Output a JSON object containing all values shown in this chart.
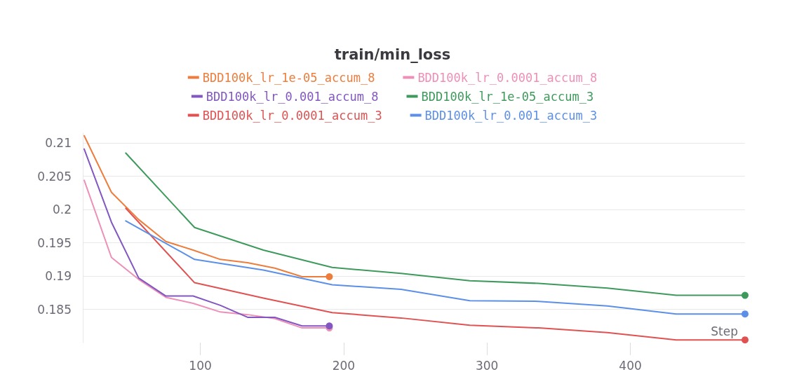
{
  "chart_data": {
    "type": "line",
    "title": "train/min_loss",
    "xlabel": "Step",
    "xlim": [
      18,
      480
    ],
    "xticks": [
      100,
      200,
      300,
      400
    ],
    "ylim": [
      0.18,
      0.2115
    ],
    "yticks": [
      0.185,
      0.19,
      0.195,
      0.2,
      0.205,
      0.21
    ],
    "grid": "y",
    "legend": "top",
    "line_style": "solid",
    "series": [
      {
        "name": "BDD100k_lr_1e-05_accum_8",
        "color": "#ec7d3c",
        "x": [
          19,
          38,
          57,
          76,
          95,
          114,
          133,
          152,
          171,
          190
        ],
        "values": [
          0.2111,
          0.2026,
          0.1985,
          0.1952,
          0.1939,
          0.1925,
          0.192,
          0.1912,
          0.1899,
          0.1899
        ]
      },
      {
        "name": "BDD100k_lr_0.0001_accum_8",
        "color": "#ee8fb8",
        "x": [
          19,
          38,
          57,
          76,
          95,
          114,
          133,
          152,
          171,
          190
        ],
        "values": [
          0.2044,
          0.1928,
          0.1895,
          0.1868,
          0.1859,
          0.1846,
          0.1842,
          0.1836,
          0.1822,
          0.1822
        ]
      },
      {
        "name": "BDD100k_lr_0.001_accum_8",
        "color": "#8257c2",
        "x": [
          19,
          38,
          57,
          76,
          95,
          114,
          133,
          152,
          171,
          190
        ],
        "values": [
          0.2091,
          0.1981,
          0.1897,
          0.187,
          0.187,
          0.1856,
          0.1838,
          0.1838,
          0.1825,
          0.1825
        ]
      },
      {
        "name": "BDD100k_lr_1e-05_accum_3",
        "color": "#3e9a5c",
        "x": [
          48,
          96,
          144,
          192,
          240,
          288,
          336,
          384,
          432,
          480
        ],
        "values": [
          0.2085,
          0.1973,
          0.1939,
          0.1913,
          0.1904,
          0.1893,
          0.1889,
          0.1882,
          0.1871,
          0.1871
        ]
      },
      {
        "name": "BDD100k_lr_0.0001_accum_3",
        "color": "#e05252",
        "x": [
          48,
          96,
          144,
          192,
          240,
          288,
          336,
          384,
          432,
          480
        ],
        "values": [
          0.2002,
          0.189,
          0.1867,
          0.1845,
          0.1837,
          0.1826,
          0.1822,
          0.1815,
          0.1804,
          0.1804
        ]
      },
      {
        "name": "BDD100k_lr_0.001_accum_3",
        "color": "#5b8fe8",
        "x": [
          48,
          96,
          144,
          192,
          240,
          288,
          336,
          384,
          432,
          480
        ],
        "values": [
          0.1983,
          0.1925,
          0.1909,
          0.1887,
          0.188,
          0.1863,
          0.1862,
          0.1855,
          0.1843,
          0.1843
        ]
      }
    ]
  }
}
